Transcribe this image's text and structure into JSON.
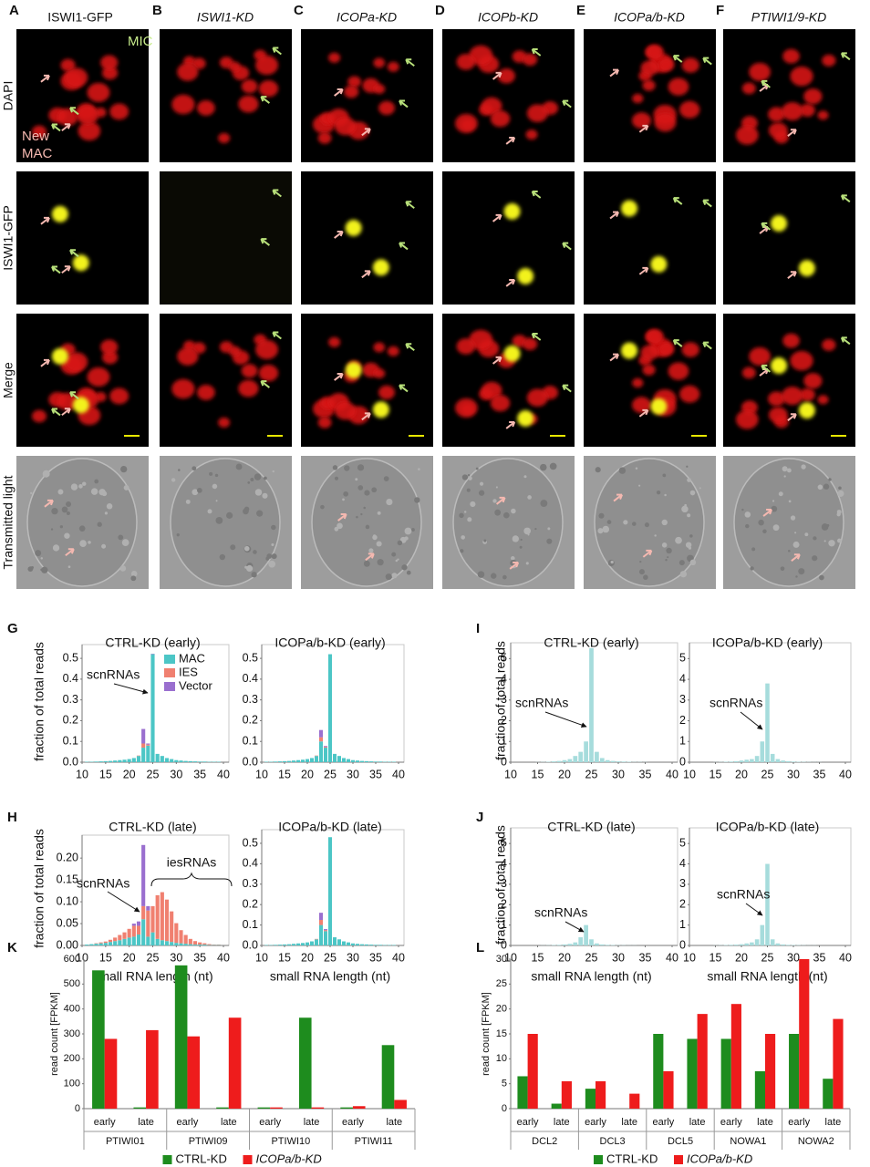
{
  "microscopy": {
    "columns": [
      {
        "letter": "A",
        "title": "ISWI1-GFP"
      },
      {
        "letter": "B",
        "title": "ISWI1-KD"
      },
      {
        "letter": "C",
        "title": "ICOPa-KD"
      },
      {
        "letter": "D",
        "title": "ICOPb-KD"
      },
      {
        "letter": "E",
        "title": "ICOPa/b-KD"
      },
      {
        "letter": "F",
        "title": "PTIWI1/9-KD"
      }
    ],
    "rows": [
      "DAPI",
      "ISWI1-GFP",
      "Merge",
      "Transmitted light"
    ],
    "mic_label": "MIC",
    "new_mac_label": [
      "New",
      "MAC"
    ]
  },
  "chart_data": [
    {
      "type": "bar",
      "panel_label": "G",
      "title": "CTRL-KD (early)",
      "y_label": "fraction of total reads",
      "x": [
        11,
        12,
        13,
        14,
        15,
        16,
        17,
        18,
        19,
        20,
        21,
        22,
        23,
        24,
        25,
        26,
        27,
        28,
        29,
        30,
        31,
        32,
        33,
        34,
        35,
        36,
        37,
        38,
        39
      ],
      "series": [
        {
          "name": "MAC",
          "color": "#4cc6c6",
          "values": [
            0.002,
            0.002,
            0.003,
            0.004,
            0.005,
            0.006,
            0.008,
            0.01,
            0.012,
            0.015,
            0.02,
            0.03,
            0.07,
            0.08,
            0.52,
            0.04,
            0.03,
            0.02,
            0.015,
            0.01,
            0.008,
            0.006,
            0.005,
            0.004,
            0.003,
            0.003,
            0.002,
            0.002,
            0.002
          ]
        },
        {
          "name": "IES",
          "color": "#f08070",
          "values": [
            0,
            0,
            0,
            0,
            0,
            0,
            0,
            0,
            0,
            0,
            0,
            0.002,
            0.02,
            0.005,
            0,
            0,
            0,
            0,
            0,
            0,
            0,
            0,
            0,
            0,
            0,
            0,
            0,
            0,
            0
          ]
        },
        {
          "name": "Vector",
          "color": "#9a6fcf",
          "values": [
            0,
            0,
            0,
            0,
            0,
            0,
            0,
            0,
            0,
            0,
            0,
            0,
            0.07,
            0.005,
            0.002,
            0,
            0,
            0,
            0,
            0,
            0,
            0,
            0,
            0,
            0,
            0,
            0,
            0,
            0
          ]
        }
      ],
      "xlim": [
        10,
        40
      ],
      "xticks": [
        10,
        15,
        20,
        25,
        30,
        35,
        40
      ],
      "ylim": [
        0,
        0.54
      ],
      "yticks": [
        {
          "value": 0,
          "label": "0.0"
        },
        0.1,
        0.2,
        0.3,
        0.4,
        0.5
      ],
      "legend": "upper right",
      "annotations": [
        "scnRNAs"
      ]
    },
    {
      "type": "bar",
      "title": "ICOPa/b-KD (early)",
      "x": [
        11,
        12,
        13,
        14,
        15,
        16,
        17,
        18,
        19,
        20,
        21,
        22,
        23,
        24,
        25,
        26,
        27,
        28,
        29,
        30,
        31,
        32,
        33,
        34,
        35,
        36,
        37,
        38,
        39
      ],
      "series": [
        {
          "name": "MAC",
          "color": "#4cc6c6",
          "values": [
            0.002,
            0.002,
            0.003,
            0.004,
            0.005,
            0.006,
            0.008,
            0.01,
            0.012,
            0.015,
            0.02,
            0.03,
            0.1,
            0.07,
            0.52,
            0.04,
            0.03,
            0.02,
            0.015,
            0.01,
            0.008,
            0.006,
            0.005,
            0.004,
            0.003,
            0.003,
            0.002,
            0.002,
            0.002
          ]
        },
        {
          "name": "IES",
          "color": "#f08070",
          "values": [
            0,
            0,
            0,
            0,
            0,
            0,
            0,
            0,
            0,
            0,
            0,
            0.002,
            0.02,
            0.004,
            0,
            0,
            0,
            0,
            0,
            0,
            0,
            0,
            0,
            0,
            0,
            0,
            0,
            0,
            0
          ]
        },
        {
          "name": "Vector",
          "color": "#9a6fcf",
          "values": [
            0,
            0,
            0,
            0,
            0,
            0,
            0,
            0,
            0,
            0,
            0,
            0,
            0.035,
            0.004,
            0,
            0,
            0,
            0,
            0,
            0,
            0,
            0,
            0,
            0,
            0,
            0,
            0,
            0,
            0
          ]
        }
      ],
      "xlim": [
        10,
        40
      ],
      "xticks": [
        10,
        15,
        20,
        25,
        30,
        35,
        40
      ],
      "ylim": [
        0,
        0.54
      ],
      "yticks": [
        {
          "value": 0,
          "label": "0.0"
        },
        0.1,
        0.2,
        0.3,
        0.4,
        0.5
      ]
    },
    {
      "type": "bar",
      "panel_label": "H",
      "title": "CTRL-KD (late)",
      "y_label": "fraction of total reads",
      "x_label": "small RNA length (nt)",
      "x": [
        11,
        12,
        13,
        14,
        15,
        16,
        17,
        18,
        19,
        20,
        21,
        22,
        23,
        24,
        25,
        26,
        27,
        28,
        29,
        30,
        31,
        32,
        33,
        34,
        35,
        36,
        37,
        38,
        39
      ],
      "series": [
        {
          "name": "MAC",
          "color": "#4cc6c6",
          "values": [
            0.002,
            0.003,
            0.004,
            0.005,
            0.006,
            0.008,
            0.01,
            0.012,
            0.015,
            0.018,
            0.02,
            0.025,
            0.06,
            0.02,
            0.03,
            0.015,
            0.012,
            0.01,
            0.008,
            0.006,
            0.005,
            0.004,
            0.003,
            0.002,
            0.002,
            0.002,
            0.001,
            0.001,
            0.001
          ]
        },
        {
          "name": "IES",
          "color": "#f08070",
          "values": [
            0,
            0,
            0.001,
            0.002,
            0.003,
            0.005,
            0.008,
            0.012,
            0.015,
            0.02,
            0.025,
            0.02,
            0.03,
            0.06,
            0.06,
            0.1,
            0.11,
            0.095,
            0.07,
            0.045,
            0.03,
            0.02,
            0.012,
            0.008,
            0.005,
            0.003,
            0.002,
            0.001,
            0.001
          ]
        },
        {
          "name": "Vector",
          "color": "#9a6fcf",
          "values": [
            0,
            0,
            0,
            0,
            0,
            0,
            0,
            0,
            0,
            0,
            0.005,
            0.01,
            0.14,
            0.01,
            0,
            0,
            0,
            0,
            0,
            0,
            0,
            0,
            0,
            0,
            0,
            0,
            0,
            0,
            0
          ]
        }
      ],
      "xlim": [
        10,
        40
      ],
      "xticks": [
        10,
        15,
        20,
        25,
        30,
        35,
        40
      ],
      "ylim": [
        0,
        0.24
      ],
      "yticks": [
        {
          "value": 0,
          "label": "0.00"
        },
        0.05,
        {
          "value": 0.1,
          "label": "0.10"
        },
        0.15,
        {
          "value": 0.2,
          "label": "0.20"
        }
      ],
      "annotations": [
        "scnRNAs",
        "iesRNAs"
      ]
    },
    {
      "type": "bar",
      "title": "ICOPa/b-KD (late)",
      "x_label": "small RNA length (nt)",
      "x": [
        11,
        12,
        13,
        14,
        15,
        16,
        17,
        18,
        19,
        20,
        21,
        22,
        23,
        24,
        25,
        26,
        27,
        28,
        29,
        30,
        31,
        32,
        33,
        34,
        35,
        36,
        37,
        38,
        39
      ],
      "series": [
        {
          "name": "MAC",
          "color": "#4cc6c6",
          "values": [
            0.002,
            0.002,
            0.003,
            0.004,
            0.005,
            0.006,
            0.008,
            0.01,
            0.012,
            0.015,
            0.02,
            0.03,
            0.1,
            0.07,
            0.53,
            0.04,
            0.03,
            0.02,
            0.015,
            0.01,
            0.008,
            0.006,
            0.005,
            0.004,
            0.003,
            0.003,
            0.002,
            0.002,
            0.002
          ]
        },
        {
          "name": "IES",
          "color": "#f08070",
          "values": [
            0,
            0,
            0,
            0,
            0,
            0,
            0,
            0,
            0,
            0,
            0,
            0.002,
            0.025,
            0.005,
            0,
            0,
            0,
            0,
            0,
            0,
            0,
            0,
            0,
            0,
            0,
            0,
            0,
            0,
            0
          ]
        },
        {
          "name": "Vector",
          "color": "#9a6fcf",
          "values": [
            0,
            0,
            0,
            0,
            0,
            0,
            0,
            0,
            0,
            0,
            0,
            0,
            0.035,
            0.005,
            0,
            0,
            0,
            0,
            0,
            0,
            0,
            0,
            0,
            0,
            0,
            0,
            0,
            0,
            0
          ]
        }
      ],
      "xlim": [
        10,
        40
      ],
      "xticks": [
        10,
        15,
        20,
        25,
        30,
        35,
        40
      ],
      "ylim": [
        0,
        0.54
      ],
      "yticks": [
        {
          "value": 0,
          "label": "0.0"
        },
        0.1,
        0.2,
        0.3,
        0.4,
        0.5
      ]
    },
    {
      "type": "bar",
      "panel_label": "I",
      "title": "CTRL-KD (early)",
      "y_label": "fraction of total reads",
      "color": "#a6dcdc",
      "x": [
        11,
        12,
        13,
        14,
        15,
        16,
        17,
        18,
        19,
        20,
        21,
        22,
        23,
        24,
        25,
        26,
        27,
        28,
        29,
        30,
        31,
        32,
        33,
        34,
        35,
        36,
        37,
        38,
        39
      ],
      "values": [
        0,
        0,
        0,
        0,
        0.005,
        0.01,
        0.02,
        0.04,
        0.06,
        0.1,
        0.15,
        0.3,
        0.5,
        1.0,
        5.5,
        0.5,
        0.2,
        0.1,
        0.06,
        0.04,
        0.03,
        0.02,
        0.01,
        0.01,
        0.005,
        0,
        0,
        0,
        0
      ],
      "xlim": [
        10,
        40
      ],
      "xticks": [
        10,
        15,
        20,
        25,
        30,
        35,
        40
      ],
      "ylim": [
        0,
        5.5
      ],
      "yticks": [
        0,
        1,
        2,
        3,
        4,
        5
      ],
      "annotations": [
        "scnRNAs"
      ]
    },
    {
      "type": "bar",
      "title": "ICOPa/b-KD (early)",
      "color": "#a6dcdc",
      "x": [
        11,
        12,
        13,
        14,
        15,
        16,
        17,
        18,
        19,
        20,
        21,
        22,
        23,
        24,
        25,
        26,
        27,
        28,
        29,
        30,
        31,
        32,
        33,
        34,
        35,
        36,
        37,
        38,
        39
      ],
      "values": [
        0,
        0,
        0,
        0,
        0.005,
        0.01,
        0.02,
        0.03,
        0.05,
        0.08,
        0.12,
        0.15,
        0.3,
        1.0,
        3.8,
        0.4,
        0.15,
        0.08,
        0.05,
        0.03,
        0.02,
        0.015,
        0.01,
        0.005,
        0.005,
        0,
        0,
        0,
        0
      ],
      "xlim": [
        10,
        40
      ],
      "xticks": [
        10,
        15,
        20,
        25,
        30,
        35,
        40
      ],
      "ylim": [
        0,
        5.5
      ],
      "yticks": [
        0,
        1,
        2,
        3,
        4,
        5
      ],
      "annotations": [
        "scnRNAs"
      ]
    },
    {
      "type": "bar",
      "panel_label": "J",
      "title": "CTRL-KD (late)",
      "y_label": "fraction of total reads",
      "x_label": "small RNA length (nt)",
      "color": "#a6dcdc",
      "x": [
        11,
        12,
        13,
        14,
        15,
        16,
        17,
        18,
        19,
        20,
        21,
        22,
        23,
        24,
        25,
        26,
        27,
        28,
        29,
        30,
        31,
        32,
        33,
        34,
        35,
        36,
        37,
        38,
        39
      ],
      "values": [
        0,
        0,
        0,
        0,
        0,
        0.005,
        0.01,
        0.02,
        0.03,
        0.05,
        0.08,
        0.15,
        0.4,
        1.0,
        0.3,
        0.1,
        0.05,
        0.03,
        0.02,
        0.01,
        0.01,
        0.005,
        0.005,
        0,
        0,
        0,
        0,
        0,
        0
      ],
      "xlim": [
        10,
        40
      ],
      "xticks": [
        10,
        15,
        20,
        25,
        30,
        35,
        40
      ],
      "ylim": [
        0,
        5.5
      ],
      "yticks": [
        0,
        1,
        2,
        3,
        4,
        5
      ],
      "annotations": [
        "scnRNAs"
      ]
    },
    {
      "type": "bar",
      "title": "ICOPa/b-KD (late)",
      "x_label": "small RNA length (nt)",
      "color": "#a6dcdc",
      "x": [
        11,
        12,
        13,
        14,
        15,
        16,
        17,
        18,
        19,
        20,
        21,
        22,
        23,
        24,
        25,
        26,
        27,
        28,
        29,
        30,
        31,
        32,
        33,
        34,
        35,
        36,
        37,
        38,
        39
      ],
      "values": [
        0,
        0,
        0,
        0,
        0.005,
        0.01,
        0.02,
        0.03,
        0.04,
        0.06,
        0.1,
        0.15,
        0.3,
        1.0,
        4.0,
        0.3,
        0.1,
        0.05,
        0.03,
        0.02,
        0.015,
        0.01,
        0.005,
        0.005,
        0,
        0,
        0,
        0,
        0
      ],
      "xlim": [
        10,
        40
      ],
      "xticks": [
        10,
        15,
        20,
        25,
        30,
        35,
        40
      ],
      "ylim": [
        0,
        5.5
      ],
      "yticks": [
        0,
        1,
        2,
        3,
        4,
        5
      ],
      "annotations": [
        "scnRNAs"
      ]
    },
    {
      "type": "grouped_bar",
      "panel_label": "K",
      "y_label": "read count [FPKM]",
      "categories": [
        "early",
        "late",
        "early",
        "late",
        "early",
        "late",
        "early",
        "late"
      ],
      "groups": [
        "PTIWI01",
        "PTIWI09",
        "PTIWI10",
        "PTIWI11"
      ],
      "series": [
        {
          "name": "CTRL-KD",
          "color": "#1e8c1e",
          "values": [
            555,
            5,
            575,
            5,
            5,
            365,
            5,
            255
          ]
        },
        {
          "name": "ICOPa/b-KD",
          "color": "#ee1c1c",
          "values": [
            280,
            315,
            290,
            365,
            5,
            5,
            10,
            35
          ]
        }
      ],
      "ylim": [
        0,
        600
      ],
      "yticks": [
        0,
        100,
        200,
        300,
        400,
        500,
        600
      ],
      "legend": "bottom"
    },
    {
      "type": "grouped_bar",
      "panel_label": "L",
      "y_label": "read count [FPKM]",
      "categories": [
        "early",
        "late",
        "early",
        "late",
        "early",
        "late",
        "early",
        "late",
        "early",
        "late"
      ],
      "groups": [
        "DCL2",
        "DCL3",
        "DCL5",
        "NOWA1",
        "NOWA2"
      ],
      "series": [
        {
          "name": "CTRL-KD",
          "color": "#1e8c1e",
          "values": [
            6.5,
            1,
            4,
            0,
            15,
            14,
            14,
            7.5,
            15,
            6
          ]
        },
        {
          "name": "ICOPa/b-KD",
          "color": "#ee1c1c",
          "values": [
            15,
            5.5,
            5.5,
            3,
            7.5,
            19,
            21,
            15,
            30,
            18
          ]
        }
      ],
      "ylim": [
        0,
        30
      ],
      "yticks": [
        0,
        5,
        10,
        15,
        20,
        25,
        30
      ],
      "legend": "bottom"
    }
  ]
}
